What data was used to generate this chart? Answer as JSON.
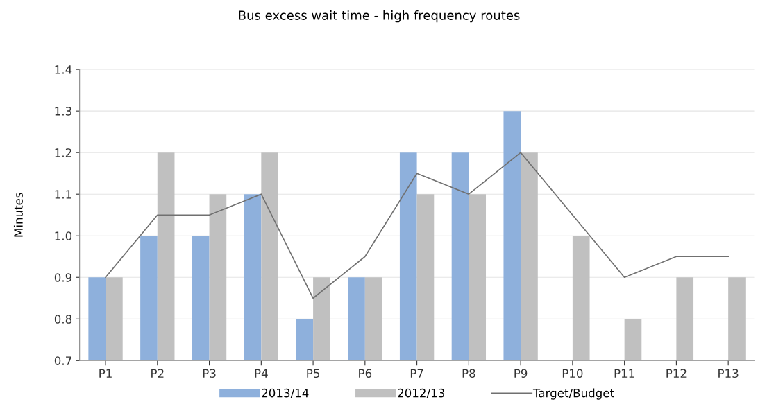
{
  "chart_data": {
    "type": "bar",
    "title": "Bus excess wait time - high frequency routes",
    "ylabel": "Minutes",
    "categories": [
      "P1",
      "P2",
      "P3",
      "P4",
      "P5",
      "P6",
      "P7",
      "P8",
      "P9",
      "P10",
      "P11",
      "P12",
      "P13"
    ],
    "series": [
      {
        "name": "2013/14",
        "color": "#8eb0dc",
        "values": [
          0.9,
          1.0,
          1.0,
          1.1,
          0.8,
          0.9,
          1.2,
          1.2,
          1.3,
          null,
          null,
          null,
          null
        ]
      },
      {
        "name": "2012/13",
        "color": "#c0c0c0",
        "values": [
          0.9,
          1.2,
          1.1,
          1.2,
          0.9,
          0.9,
          1.1,
          1.1,
          1.2,
          1.0,
          0.8,
          0.9,
          0.9
        ]
      },
      {
        "name": "Target/Budget",
        "type": "line",
        "color": "#707070",
        "values": [
          0.9,
          1.05,
          1.05,
          1.1,
          0.85,
          0.95,
          1.15,
          1.1,
          1.2,
          1.05,
          0.9,
          0.95,
          0.95
        ]
      }
    ],
    "ylim": [
      0.7,
      1.4
    ],
    "yticks": [
      0.7,
      0.8,
      0.9,
      {
        "value": 1,
        "label": "1.0"
      },
      1.1,
      1.2,
      1.3,
      1.4
    ],
    "grid": "y",
    "legend": "bottom"
  }
}
